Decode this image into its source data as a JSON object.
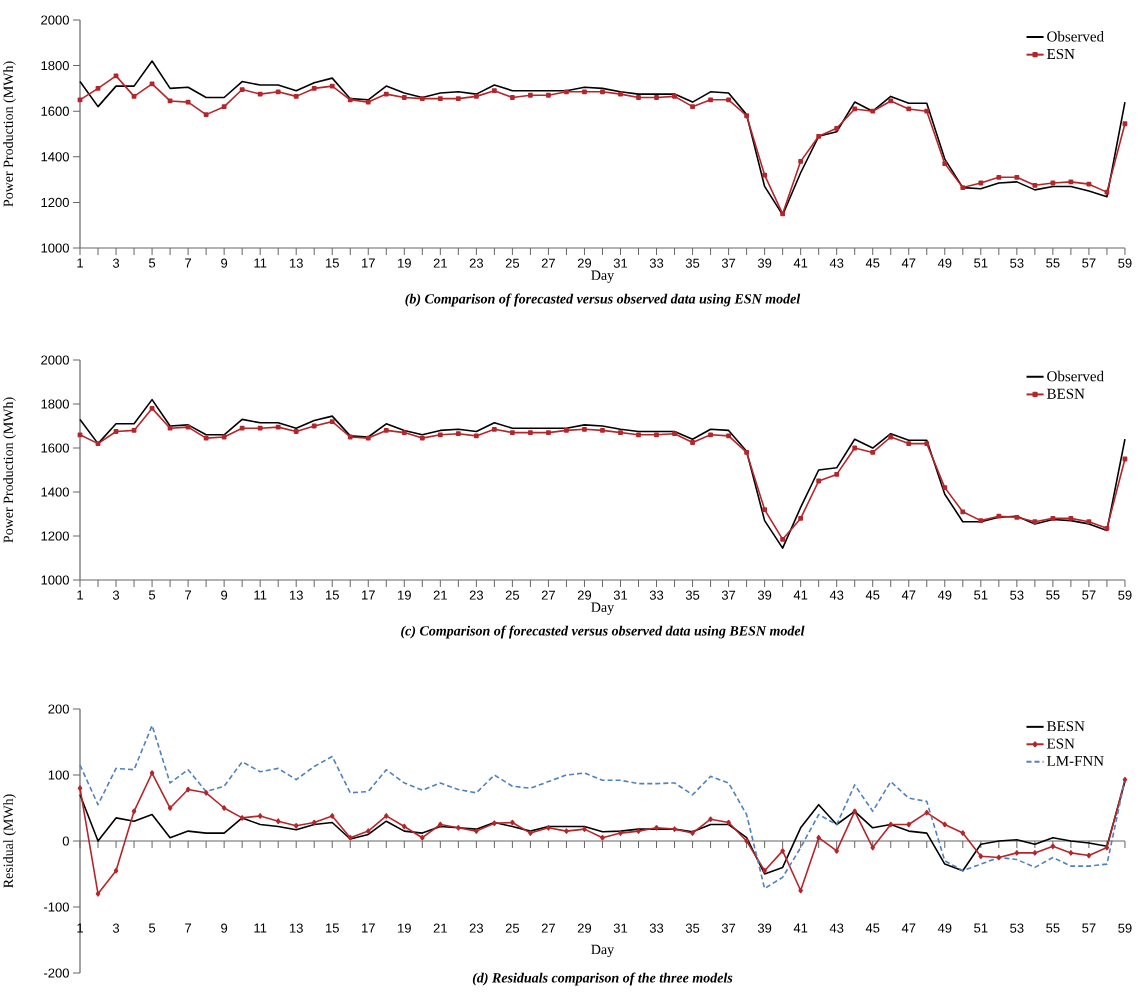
{
  "chart_data": [
    {
      "type": "line",
      "title": "(b) Comparison of forecasted versus observed data using ESN model",
      "xlabel": "Day",
      "ylabel": "Power Production (MWh)",
      "legend": "top right",
      "grid": false,
      "x": [
        1,
        2,
        3,
        4,
        5,
        6,
        7,
        8,
        9,
        10,
        11,
        12,
        13,
        14,
        15,
        16,
        17,
        18,
        19,
        20,
        21,
        22,
        23,
        24,
        25,
        26,
        27,
        28,
        29,
        30,
        31,
        32,
        33,
        34,
        35,
        36,
        37,
        38,
        39,
        40,
        41,
        42,
        43,
        44,
        45,
        46,
        47,
        48,
        49,
        50,
        51,
        52,
        53,
        54,
        55,
        56,
        57,
        58,
        59
      ],
      "xlim": [
        1,
        59
      ],
      "xticks": [
        1,
        3,
        5,
        7,
        9,
        11,
        13,
        15,
        17,
        19,
        21,
        23,
        25,
        27,
        29,
        31,
        33,
        35,
        37,
        39,
        41,
        43,
        45,
        47,
        49,
        51,
        53,
        55,
        57,
        59
      ],
      "ylim": [
        1000,
        2000
      ],
      "yticks": [
        1000,
        1200,
        1400,
        1600,
        1800,
        2000
      ],
      "series": [
        {
          "name": "Observed",
          "color": "#000000",
          "marker": "none",
          "values": [
            1730,
            1620,
            1710,
            1710,
            1820,
            1700,
            1705,
            1660,
            1660,
            1730,
            1715,
            1715,
            1690,
            1725,
            1745,
            1655,
            1650,
            1710,
            1680,
            1660,
            1680,
            1685,
            1675,
            1715,
            1690,
            1690,
            1690,
            1690,
            1705,
            1700,
            1685,
            1675,
            1675,
            1675,
            1640,
            1685,
            1680,
            1585,
            1270,
            1145,
            1330,
            1490,
            1510,
            1640,
            1600,
            1665,
            1635,
            1635,
            1390,
            1265,
            1260,
            1285,
            1290,
            1255,
            1270,
            1270,
            1250,
            1225,
            1640
          ]
        },
        {
          "name": "ESN",
          "color": "#b5262b",
          "marker": "square",
          "values": [
            1650,
            1700,
            1755,
            1665,
            1720,
            1645,
            1640,
            1585,
            1620,
            1695,
            1675,
            1685,
            1665,
            1700,
            1710,
            1650,
            1640,
            1675,
            1660,
            1655,
            1655,
            1655,
            1665,
            1690,
            1660,
            1670,
            1670,
            1685,
            1685,
            1685,
            1675,
            1660,
            1660,
            1665,
            1620,
            1650,
            1650,
            1580,
            1320,
            1150,
            1380,
            1490,
            1525,
            1610,
            1600,
            1645,
            1610,
            1600,
            1370,
            1265,
            1285,
            1310,
            1310,
            1275,
            1285,
            1290,
            1280,
            1245,
            1545
          ]
        }
      ]
    },
    {
      "type": "line",
      "title": "(c) Comparison of forecasted versus observed data using BESN model",
      "xlabel": "Day",
      "ylabel": "Power Production (MWh)",
      "legend": "top right",
      "grid": false,
      "x": [
        1,
        2,
        3,
        4,
        5,
        6,
        7,
        8,
        9,
        10,
        11,
        12,
        13,
        14,
        15,
        16,
        17,
        18,
        19,
        20,
        21,
        22,
        23,
        24,
        25,
        26,
        27,
        28,
        29,
        30,
        31,
        32,
        33,
        34,
        35,
        36,
        37,
        38,
        39,
        40,
        41,
        42,
        43,
        44,
        45,
        46,
        47,
        48,
        49,
        50,
        51,
        52,
        53,
        54,
        55,
        56,
        57,
        58,
        59
      ],
      "xlim": [
        1,
        59
      ],
      "xticks": [
        1,
        3,
        5,
        7,
        9,
        11,
        13,
        15,
        17,
        19,
        21,
        23,
        25,
        27,
        29,
        31,
        33,
        35,
        37,
        39,
        41,
        43,
        45,
        47,
        49,
        51,
        53,
        55,
        57,
        59
      ],
      "ylim": [
        1000,
        2000
      ],
      "yticks": [
        1000,
        1200,
        1400,
        1600,
        1800,
        2000
      ],
      "series": [
        {
          "name": "Observed",
          "color": "#000000",
          "marker": "none",
          "values": [
            1730,
            1620,
            1710,
            1710,
            1820,
            1700,
            1705,
            1660,
            1660,
            1730,
            1715,
            1715,
            1690,
            1725,
            1745,
            1655,
            1650,
            1710,
            1680,
            1660,
            1680,
            1685,
            1675,
            1715,
            1690,
            1690,
            1690,
            1690,
            1705,
            1700,
            1685,
            1675,
            1675,
            1675,
            1640,
            1685,
            1680,
            1585,
            1270,
            1145,
            1330,
            1500,
            1510,
            1640,
            1600,
            1665,
            1635,
            1635,
            1390,
            1265,
            1265,
            1285,
            1290,
            1255,
            1275,
            1270,
            1255,
            1225,
            1640
          ]
        },
        {
          "name": "BESN",
          "color": "#b5262b",
          "marker": "square",
          "values": [
            1660,
            1620,
            1675,
            1680,
            1780,
            1690,
            1695,
            1645,
            1650,
            1690,
            1690,
            1695,
            1675,
            1700,
            1720,
            1650,
            1645,
            1680,
            1670,
            1645,
            1660,
            1665,
            1655,
            1685,
            1670,
            1670,
            1670,
            1680,
            1685,
            1680,
            1670,
            1660,
            1660,
            1665,
            1625,
            1660,
            1655,
            1580,
            1320,
            1185,
            1280,
            1450,
            1480,
            1600,
            1580,
            1650,
            1620,
            1620,
            1420,
            1310,
            1270,
            1290,
            1285,
            1265,
            1280,
            1280,
            1265,
            1235,
            1550
          ]
        }
      ]
    },
    {
      "type": "line",
      "title": "(d) Residuals comparison of the three models",
      "xlabel": "Day",
      "ylabel": "Residual (MWh)",
      "legend": "top right",
      "x": [
        1,
        2,
        3,
        4,
        5,
        6,
        7,
        8,
        9,
        10,
        11,
        12,
        13,
        14,
        15,
        16,
        17,
        18,
        19,
        20,
        21,
        22,
        23,
        24,
        25,
        26,
        27,
        28,
        29,
        30,
        31,
        32,
        33,
        34,
        35,
        36,
        37,
        38,
        39,
        40,
        41,
        42,
        43,
        44,
        45,
        46,
        47,
        48,
        49,
        50,
        51,
        52,
        53,
        54,
        55,
        56,
        57,
        58,
        59
      ],
      "xlim": [
        1,
        59
      ],
      "xticks": [
        1,
        3,
        5,
        7,
        9,
        11,
        13,
        15,
        17,
        19,
        21,
        23,
        25,
        27,
        29,
        31,
        33,
        35,
        37,
        39,
        41,
        43,
        45,
        47,
        49,
        51,
        53,
        55,
        57,
        59
      ],
      "ylim": [
        -200,
        200
      ],
      "yticks": [
        -200,
        -100,
        0,
        100,
        200
      ],
      "series": [
        {
          "name": "BESN",
          "color": "#000000",
          "marker": "none",
          "line_style": "solid",
          "values": [
            70,
            0,
            35,
            30,
            40,
            5,
            15,
            12,
            12,
            35,
            25,
            22,
            17,
            25,
            28,
            3,
            10,
            30,
            15,
            12,
            22,
            20,
            18,
            28,
            22,
            15,
            22,
            22,
            22,
            14,
            15,
            18,
            18,
            18,
            14,
            25,
            25,
            5,
            -50,
            -40,
            20,
            55,
            25,
            45,
            20,
            25,
            15,
            12,
            -35,
            -45,
            -5,
            0,
            2,
            -5,
            5,
            0,
            -3,
            -8,
            90
          ]
        },
        {
          "name": "ESN",
          "color": "#b5262b",
          "marker": "diamond",
          "line_style": "solid",
          "values": [
            80,
            -80,
            -45,
            45,
            103,
            50,
            78,
            73,
            50,
            35,
            38,
            30,
            23,
            28,
            38,
            5,
            15,
            38,
            22,
            5,
            25,
            20,
            15,
            27,
            28,
            12,
            20,
            15,
            18,
            5,
            12,
            15,
            20,
            18,
            12,
            33,
            28,
            0,
            -45,
            -15,
            -75,
            5,
            -15,
            45,
            -10,
            25,
            25,
            43,
            25,
            12,
            -23,
            -25,
            -18,
            -18,
            -8,
            -18,
            -22,
            -10,
            93
          ]
        },
        {
          "name": "LM-FNN",
          "color": "#4f81bd",
          "marker": "none",
          "line_style": "dashed",
          "values": [
            115,
            55,
            110,
            108,
            175,
            88,
            108,
            75,
            83,
            120,
            105,
            110,
            93,
            113,
            128,
            73,
            75,
            108,
            88,
            77,
            88,
            78,
            73,
            100,
            83,
            80,
            90,
            100,
            103,
            92,
            92,
            87,
            87,
            88,
            70,
            98,
            88,
            40,
            -72,
            -55,
            -10,
            40,
            25,
            85,
            45,
            90,
            65,
            60,
            -30,
            -45,
            -35,
            -25,
            -28,
            -40,
            -25,
            -38,
            -38,
            -35,
            93
          ]
        }
      ]
    }
  ]
}
